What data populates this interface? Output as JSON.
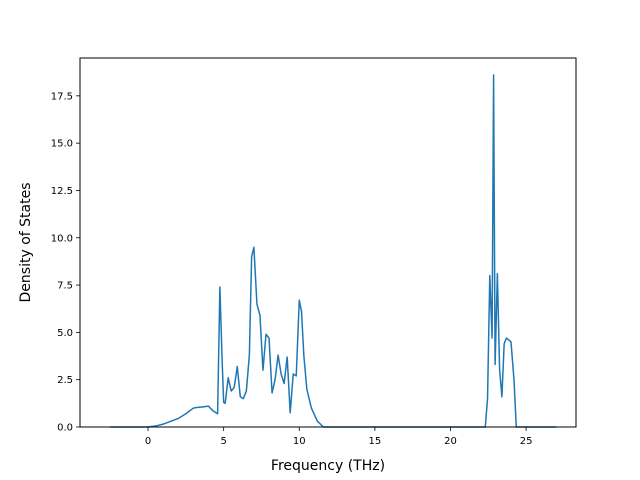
{
  "chart_data": {
    "type": "line",
    "title": "",
    "xlabel": "Frequency (THz)",
    "ylabel": "Density of States",
    "xlim": [
      -4.5,
      28.3
    ],
    "ylim": [
      0,
      19.5
    ],
    "xticks": [
      0,
      5,
      10,
      15,
      20,
      25
    ],
    "xtick_labels": [
      "0",
      "5",
      "10",
      "15",
      "20",
      "25"
    ],
    "yticks": [
      0.0,
      2.5,
      5.0,
      7.5,
      10.0,
      12.5,
      15.0,
      17.5
    ],
    "ytick_labels": [
      "0.0",
      "2.5",
      "5.0",
      "7.5",
      "10.0",
      "12.5",
      "15.0",
      "17.5"
    ],
    "grid": false,
    "legend": "none",
    "line_color": "#1f77b4",
    "series": [
      {
        "x": [
          -2.5,
          0.0,
          0.5,
          1.0,
          1.5,
          2.0,
          2.5,
          3.0,
          3.2,
          3.5,
          4.0,
          4.3,
          4.6,
          4.75,
          4.9,
          5.0,
          5.1,
          5.3,
          5.5,
          5.7,
          5.9,
          6.1,
          6.3,
          6.5,
          6.7,
          6.85,
          7.0,
          7.2,
          7.4,
          7.6,
          7.8,
          8.0,
          8.2,
          8.4,
          8.6,
          8.8,
          9.0,
          9.2,
          9.4,
          9.6,
          9.8,
          10.0,
          10.15,
          10.3,
          10.5,
          10.8,
          11.2,
          11.6,
          12.0,
          15.0,
          20.0,
          22.3,
          22.45,
          22.6,
          22.75,
          22.85,
          22.95,
          23.1,
          23.25,
          23.4,
          23.55,
          23.7,
          24.0,
          24.2,
          24.35,
          24.5,
          27.0
        ],
        "y": [
          0.0,
          0.0,
          0.05,
          0.15,
          0.3,
          0.45,
          0.7,
          1.0,
          1.03,
          1.05,
          1.1,
          0.85,
          0.7,
          7.4,
          3.5,
          1.3,
          1.25,
          2.6,
          1.9,
          2.1,
          3.2,
          1.6,
          1.5,
          1.9,
          3.8,
          9.0,
          9.5,
          6.5,
          5.9,
          3.0,
          4.9,
          4.7,
          1.8,
          2.5,
          3.8,
          2.8,
          2.3,
          3.7,
          0.75,
          2.8,
          2.7,
          6.7,
          6.1,
          3.8,
          2.0,
          1.0,
          0.3,
          0.0,
          0.0,
          0.0,
          0.0,
          0.0,
          1.5,
          8.0,
          4.7,
          18.6,
          3.3,
          8.1,
          3.0,
          1.6,
          4.4,
          4.7,
          4.5,
          2.5,
          0.0,
          0.0,
          0.0
        ]
      }
    ]
  }
}
